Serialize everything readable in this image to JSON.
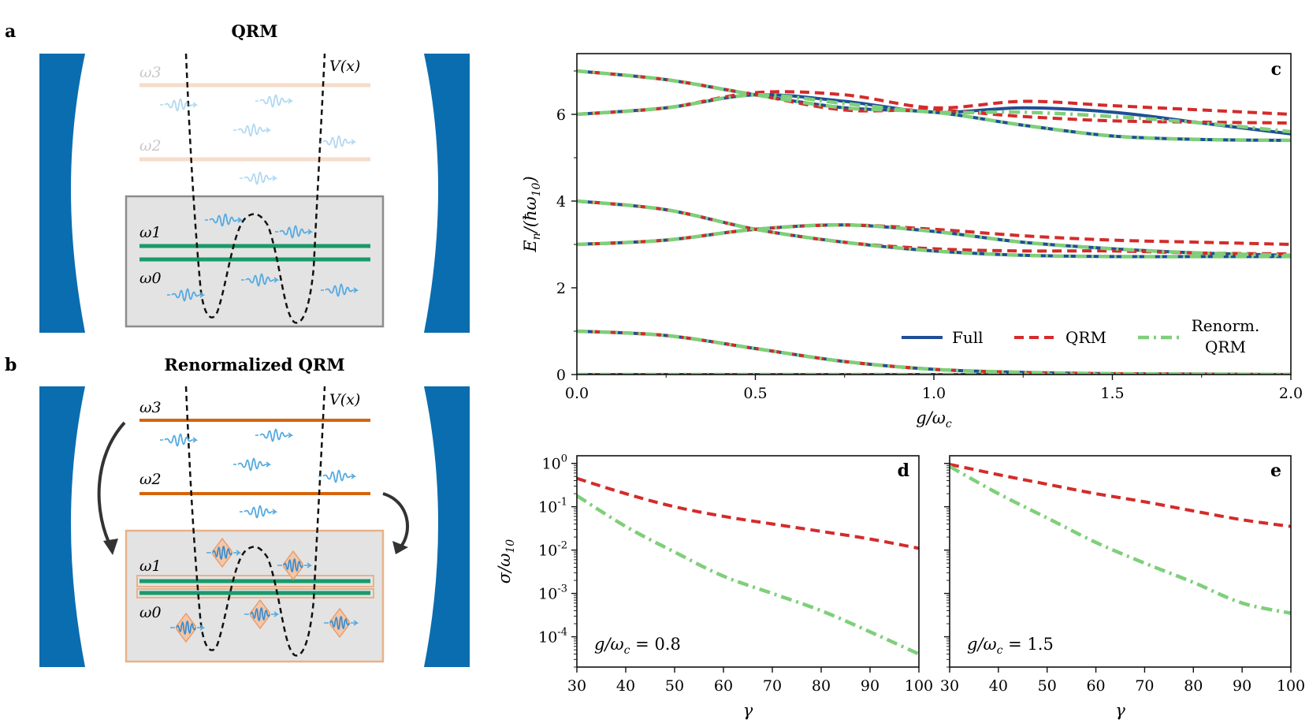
{
  "panels": {
    "a": {
      "letter": "a",
      "title": "QRM",
      "potential_label": "V(x)",
      "levels": [
        "ω3",
        "ω2",
        "ω1",
        "ω0"
      ]
    },
    "b": {
      "letter": "b",
      "title": "Renormalized QRM",
      "potential_label": "V(x)",
      "levels": [
        "ω3",
        "ω2",
        "ω1",
        "ω0"
      ]
    }
  },
  "colors": {
    "mirror": "#0a6db0",
    "full": "#1f4e96",
    "qrm": "#d42b2b",
    "renorm": "#7fcf7a",
    "level_low": "#1a9a6a",
    "level_high_faint": "#f6dccb",
    "level_high": "#d5640f",
    "photon": "#52a9e0",
    "box_fill": "#e3e3e3",
    "box_border_a": "#8c8c8c",
    "box_border_b": "#e8b28a",
    "arrow": "#333333"
  },
  "chart_data": [
    {
      "panel": "c",
      "letter": "c",
      "type": "line",
      "xlabel": "g/ωc",
      "ylabel": "En/(ħω10)",
      "xlim": [
        0,
        2
      ],
      "ylim": [
        0,
        7.4
      ],
      "xticks": [
        "0.0",
        "0.5",
        "1.0",
        "1.5",
        "2.0"
      ],
      "yticks": [
        "0",
        "2",
        "4",
        "6"
      ],
      "legend": [
        "Full",
        "QRM",
        "Renorm. QRM"
      ],
      "x": [
        0,
        0.25,
        0.5,
        0.75,
        1.0,
        1.25,
        1.5,
        1.75,
        2.0
      ],
      "series": [
        {
          "name": "Full",
          "curves": [
            [
              0,
              0,
              0,
              0,
              0,
              0,
              0,
              0,
              0
            ],
            [
              1,
              0.9,
              0.6,
              0.3,
              0.12,
              0.05,
              0.02,
              0.01,
              0
            ],
            [
              3,
              3.1,
              3.35,
              3.45,
              3.3,
              3.05,
              2.9,
              2.8,
              2.75
            ],
            [
              4,
              3.8,
              3.35,
              3.05,
              2.85,
              2.75,
              2.72,
              2.72,
              2.72
            ],
            [
              6,
              6.15,
              6.45,
              6.3,
              6.05,
              6.15,
              6.05,
              5.8,
              5.55
            ],
            [
              7,
              6.8,
              6.45,
              6.15,
              6.05,
              5.75,
              5.5,
              5.42,
              5.4
            ]
          ]
        },
        {
          "name": "QRM",
          "curves": [
            [
              0,
              0,
              0,
              0,
              0,
              0,
              0,
              0,
              0
            ],
            [
              1,
              0.9,
              0.6,
              0.3,
              0.12,
              0.05,
              0.02,
              0.01,
              0
            ],
            [
              3,
              3.1,
              3.35,
              3.45,
              3.35,
              3.2,
              3.1,
              3.05,
              3.0
            ],
            [
              4,
              3.8,
              3.35,
              3.05,
              2.9,
              2.85,
              2.85,
              2.8,
              2.78
            ],
            [
              6,
              6.15,
              6.5,
              6.45,
              6.15,
              6.3,
              6.2,
              6.1,
              6.0
            ],
            [
              7,
              6.8,
              6.45,
              6.1,
              6.1,
              5.95,
              5.85,
              5.82,
              5.8
            ]
          ]
        },
        {
          "name": "Renorm. QRM",
          "curves": [
            [
              0,
              0,
              0,
              0,
              0,
              0,
              0,
              0,
              0
            ],
            [
              1,
              0.9,
              0.6,
              0.3,
              0.12,
              0.05,
              0.02,
              0.01,
              0
            ],
            [
              3,
              3.1,
              3.35,
              3.45,
              3.3,
              3.05,
              2.9,
              2.8,
              2.75
            ],
            [
              4,
              3.8,
              3.35,
              3.05,
              2.85,
              2.75,
              2.72,
              2.72,
              2.72
            ],
            [
              6,
              6.15,
              6.45,
              6.25,
              6.05,
              6.05,
              5.95,
              5.8,
              5.6
            ],
            [
              7,
              6.8,
              6.45,
              6.15,
              6.05,
              5.75,
              5.5,
              5.42,
              5.4
            ]
          ]
        }
      ]
    },
    {
      "panel": "d",
      "letter": "d",
      "type": "line",
      "yscale": "log",
      "xlabel": "γ",
      "ylabel": "σ/ω10",
      "annotation": "g/ωc = 0.8",
      "xlim": [
        30,
        100
      ],
      "ylim": [
        2e-05,
        1.5
      ],
      "xticks": [
        "30",
        "40",
        "50",
        "60",
        "70",
        "80",
        "90",
        "100"
      ],
      "yticks": [
        "10^0",
        "10^-1",
        "10^-2",
        "10^-3",
        "10^-4"
      ],
      "x": [
        30,
        40,
        50,
        60,
        70,
        80,
        90,
        100
      ],
      "series": [
        {
          "name": "QRM",
          "values": [
            0.45,
            0.2,
            0.1,
            0.06,
            0.04,
            0.027,
            0.018,
            0.011
          ]
        },
        {
          "name": "Renorm. QRM",
          "values": [
            0.18,
            0.035,
            0.009,
            0.0025,
            0.001,
            0.0004,
            0.00013,
            4e-05
          ]
        }
      ]
    },
    {
      "panel": "e",
      "letter": "e",
      "type": "line",
      "yscale": "log",
      "xlabel": "γ",
      "ylabel": "",
      "annotation": "g/ωc = 1.5",
      "xlim": [
        30,
        100
      ],
      "ylim": [
        2e-05,
        1.5
      ],
      "xticks": [
        "30",
        "40",
        "50",
        "60",
        "70",
        "80",
        "90",
        "100"
      ],
      "x": [
        30,
        40,
        50,
        60,
        70,
        80,
        90,
        100
      ],
      "series": [
        {
          "name": "QRM",
          "values": [
            0.95,
            0.55,
            0.33,
            0.2,
            0.13,
            0.08,
            0.05,
            0.035
          ]
        },
        {
          "name": "Renorm. QRM",
          "values": [
            0.85,
            0.2,
            0.055,
            0.015,
            0.005,
            0.0018,
            0.0006,
            0.00035
          ]
        }
      ]
    }
  ]
}
